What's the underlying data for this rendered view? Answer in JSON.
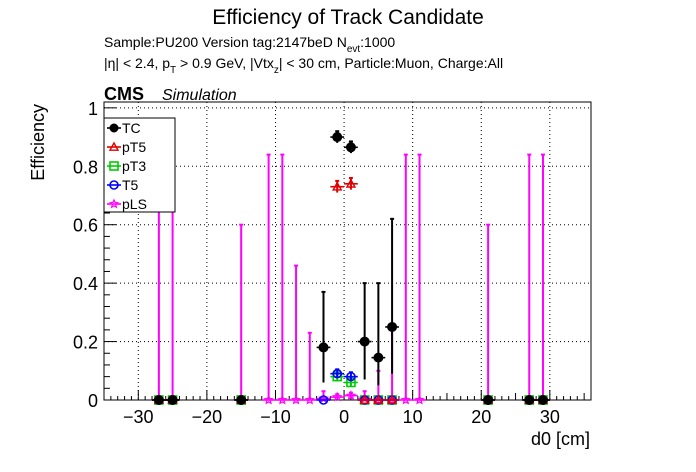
{
  "header": {
    "title": "Efficiency of Track Candidate",
    "sample_line": "Sample:PU200   Version tag:2147beD  N",
    "sample_sub": "evt",
    "sample_tail": ":1000",
    "cuts_a": "|η| < 2.4, p",
    "cuts_a_sub": "T",
    "cuts_b": " > 0.9 GeV, |Vtx",
    "cuts_b_sub": "z",
    "cuts_c": "| < 30 cm, Particle:Muon, Charge:All",
    "cms": "CMS",
    "simulation": "Simulation"
  },
  "chart_data": {
    "type": "scatter",
    "xlabel": "d0 [cm]",
    "ylabel": "Efficiency",
    "xlim": [
      -35,
      36
    ],
    "ylim": [
      0,
      1.02
    ],
    "xticks": [
      -30,
      -20,
      -10,
      0,
      10,
      20,
      30
    ],
    "xtick_labels": [
      "−30",
      "−20",
      "−10",
      "0",
      "10",
      "20",
      "30"
    ],
    "yticks": [
      0,
      0.2,
      0.4,
      0.6,
      0.8,
      1
    ],
    "ytick_labels": [
      "0",
      "0.2",
      "0.4",
      "0.6",
      "0.8",
      "1"
    ],
    "grid": true,
    "legend_position": "top-left",
    "series": [
      {
        "name": "TC",
        "color": "#000000",
        "marker": "filled-circle",
        "points": [
          {
            "x": -27,
            "y": 0
          },
          {
            "x": -25,
            "y": 0
          },
          {
            "x": -15,
            "y": 0
          },
          {
            "x": -3,
            "y": 0.18,
            "lo": 0.06,
            "hi": 0.37
          },
          {
            "x": -1,
            "y": 0.9,
            "lo": 0.88,
            "hi": 0.92
          },
          {
            "x": 1,
            "y": 0.865,
            "lo": 0.845,
            "hi": 0.885
          },
          {
            "x": 3,
            "y": 0.2,
            "lo": 0.07,
            "hi": 0.4
          },
          {
            "x": 5,
            "y": 0.145,
            "lo": 0.05,
            "hi": 0.4
          },
          {
            "x": 7,
            "y": 0.25,
            "lo": 0.09,
            "hi": 0.62
          },
          {
            "x": 21,
            "y": 0
          },
          {
            "x": 27,
            "y": 0
          },
          {
            "x": 29,
            "y": 0
          }
        ]
      },
      {
        "name": "pT5",
        "color": "#e00000",
        "marker": "open-triangle",
        "points": [
          {
            "x": -27,
            "y": 0
          },
          {
            "x": -25,
            "y": 0
          },
          {
            "x": -15,
            "y": 0
          },
          {
            "x": -1,
            "y": 0.73,
            "lo": 0.71,
            "hi": 0.75
          },
          {
            "x": 1,
            "y": 0.74,
            "lo": 0.72,
            "hi": 0.76
          },
          {
            "x": 3,
            "y": 0
          },
          {
            "x": 5,
            "y": 0
          },
          {
            "x": 7,
            "y": 0
          },
          {
            "x": 21,
            "y": 0
          },
          {
            "x": 27,
            "y": 0
          },
          {
            "x": 29,
            "y": 0
          }
        ]
      },
      {
        "name": "pT3",
        "color": "#00cc00",
        "marker": "open-square",
        "points": [
          {
            "x": -27,
            "y": 0
          },
          {
            "x": -25,
            "y": 0
          },
          {
            "x": -15,
            "y": 0
          },
          {
            "x": -1,
            "y": 0.08,
            "lo": 0.065,
            "hi": 0.095
          },
          {
            "x": 1,
            "y": 0.06,
            "lo": 0.045,
            "hi": 0.075
          },
          {
            "x": 3,
            "y": 0
          },
          {
            "x": 5,
            "y": 0
          },
          {
            "x": 7,
            "y": 0
          },
          {
            "x": 21,
            "y": 0
          },
          {
            "x": 27,
            "y": 0
          },
          {
            "x": 29,
            "y": 0
          }
        ]
      },
      {
        "name": "T5",
        "color": "#0000ff",
        "marker": "open-circle",
        "points": [
          {
            "x": -27,
            "y": 0
          },
          {
            "x": -25,
            "y": 0
          },
          {
            "x": -15,
            "y": 0
          },
          {
            "x": -3,
            "y": 0
          },
          {
            "x": -1,
            "y": 0.09,
            "lo": 0.075,
            "hi": 0.105
          },
          {
            "x": 1,
            "y": 0.08,
            "lo": 0.065,
            "hi": 0.095
          },
          {
            "x": 3,
            "y": 0
          },
          {
            "x": 5,
            "y": 0
          },
          {
            "x": 7,
            "y": 0
          },
          {
            "x": 21,
            "y": 0
          },
          {
            "x": 27,
            "y": 0
          },
          {
            "x": 29,
            "y": 0
          }
        ]
      },
      {
        "name": "pLS",
        "color": "#ff00ff",
        "marker": "open-star",
        "points": [
          {
            "x": -27,
            "y": 0,
            "lo": 0,
            "hi": 0.84
          },
          {
            "x": -25,
            "y": 0,
            "lo": 0,
            "hi": 0.84
          },
          {
            "x": -15,
            "y": 0,
            "lo": 0,
            "hi": 0.6
          },
          {
            "x": -11,
            "y": 0,
            "lo": 0,
            "hi": 0.84
          },
          {
            "x": -9,
            "y": 0,
            "lo": 0,
            "hi": 0.84
          },
          {
            "x": -7,
            "y": 0,
            "lo": 0,
            "hi": 0.46
          },
          {
            "x": -5,
            "y": 0,
            "lo": 0,
            "hi": 0.23
          },
          {
            "x": -3,
            "y": 0.005,
            "lo": 0,
            "hi": 0.03
          },
          {
            "x": -1,
            "y": 0.01,
            "lo": 0.005,
            "hi": 0.02
          },
          {
            "x": 1,
            "y": 0.015,
            "lo": 0.008,
            "hi": 0.025
          },
          {
            "x": 3,
            "y": 0.005,
            "lo": 0,
            "hi": 0.03
          },
          {
            "x": 5,
            "y": 0,
            "lo": 0,
            "hi": 0.1
          },
          {
            "x": 7,
            "y": 0,
            "lo": 0,
            "hi": 0.25
          },
          {
            "x": 9,
            "y": 0,
            "lo": 0,
            "hi": 0.84
          },
          {
            "x": 11,
            "y": 0,
            "lo": 0,
            "hi": 0.84
          },
          {
            "x": 21,
            "y": 0,
            "lo": 0,
            "hi": 0.6
          },
          {
            "x": 27,
            "y": 0,
            "lo": 0,
            "hi": 0.84
          },
          {
            "x": 29,
            "y": 0,
            "lo": 0,
            "hi": 0.84
          }
        ]
      }
    ]
  }
}
